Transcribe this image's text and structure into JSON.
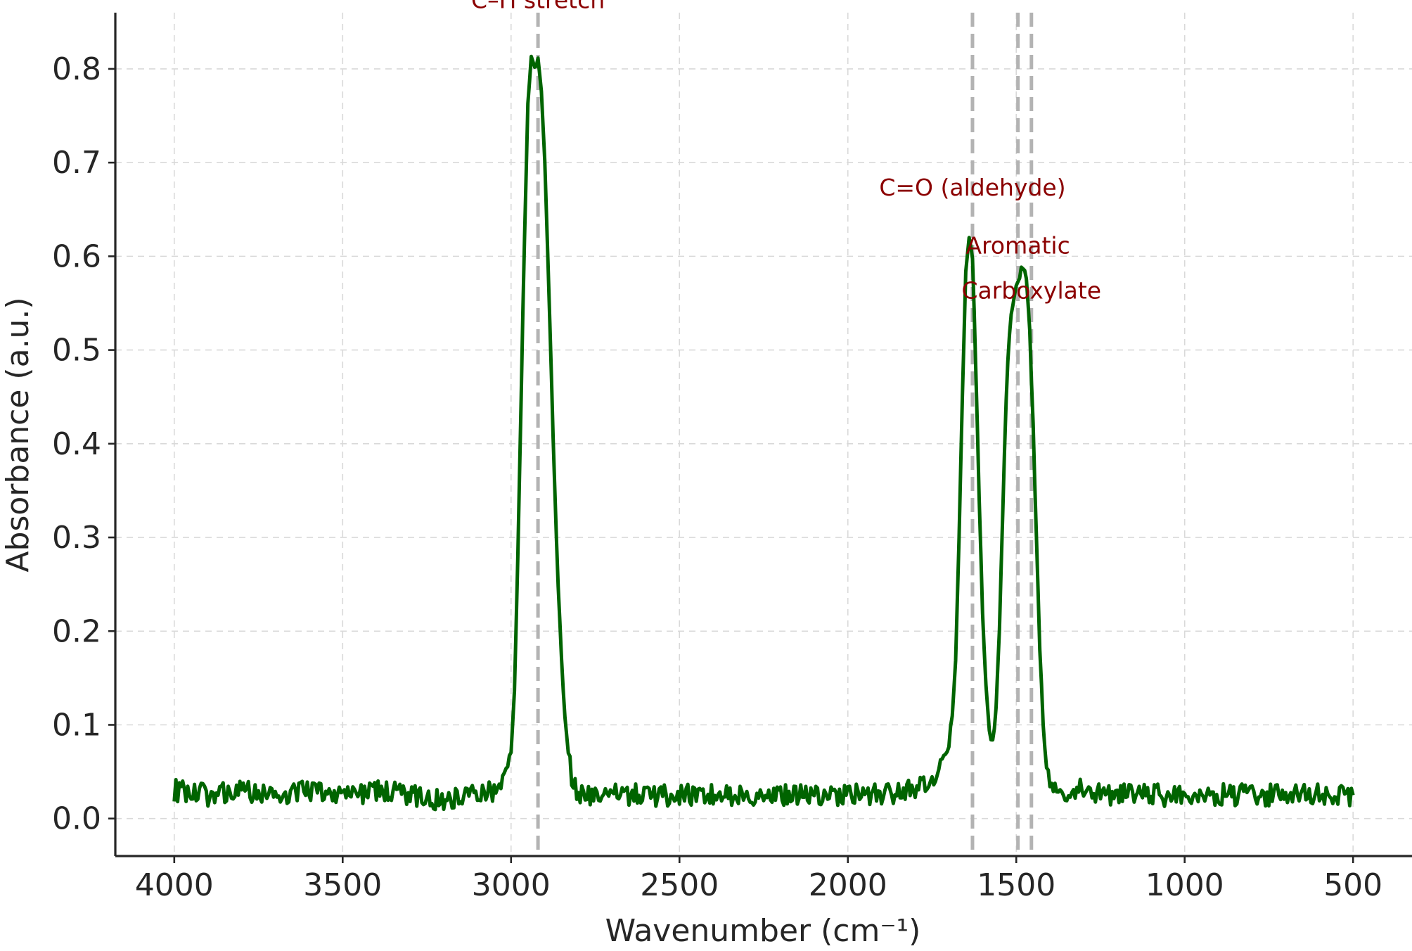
{
  "chart_data": {
    "type": "line",
    "title": "",
    "xlabel": "Wavenumber (cm⁻¹)",
    "ylabel": "Absorbance (a.u.)",
    "xlim": [
      4175,
      325
    ],
    "ylim": [
      -0.04,
      0.86
    ],
    "x_inverted": true,
    "grid": true,
    "x_ticks": [
      {
        "value": 4000,
        "label": "4000"
      },
      {
        "value": 3500,
        "label": "3500"
      },
      {
        "value": 3000,
        "label": "3000"
      },
      {
        "value": 2500,
        "label": "2500"
      },
      {
        "value": 2000,
        "label": "2000"
      },
      {
        "value": 1500,
        "label": "1500"
      },
      {
        "value": 1000,
        "label": "1000"
      },
      {
        "value": 500,
        "label": "500"
      }
    ],
    "y_ticks": [
      {
        "value": 0.0,
        "label": "0.0"
      },
      {
        "value": 0.1,
        "label": "0.1"
      },
      {
        "value": 0.2,
        "label": "0.2"
      },
      {
        "value": 0.3,
        "label": "0.3"
      },
      {
        "value": 0.4,
        "label": "0.4"
      },
      {
        "value": 0.5,
        "label": "0.5"
      },
      {
        "value": 0.6,
        "label": "0.6"
      },
      {
        "value": 0.7,
        "label": "0.7"
      },
      {
        "value": 0.8,
        "label": "0.8"
      }
    ],
    "series": [
      {
        "color": "#006400",
        "x": [
          4000,
          3900,
          3800,
          3700,
          3600,
          3500,
          3400,
          3300,
          3200,
          3150,
          3100,
          3050,
          3020,
          3000,
          2990,
          2980,
          2970,
          2960,
          2950,
          2940,
          2930,
          2920,
          2910,
          2900,
          2890,
          2880,
          2870,
          2860,
          2850,
          2840,
          2830,
          2820,
          2810,
          2800,
          2780,
          2750,
          2700,
          2600,
          2500,
          2400,
          2300,
          2200,
          2100,
          2000,
          1900,
          1800,
          1750,
          1720,
          1700,
          1690,
          1680,
          1670,
          1660,
          1650,
          1640,
          1630,
          1620,
          1610,
          1600,
          1590,
          1580,
          1570,
          1560,
          1550,
          1540,
          1530,
          1520,
          1510,
          1500,
          1490,
          1480,
          1470,
          1460,
          1450,
          1440,
          1430,
          1420,
          1410,
          1400,
          1390,
          1370,
          1300,
          1200,
          1100,
          1000,
          900,
          800,
          700,
          600,
          500
        ],
        "y": [
          0.03,
          0.025,
          0.03,
          0.025,
          0.03,
          0.025,
          0.03,
          0.025,
          0.02,
          0.025,
          0.03,
          0.03,
          0.045,
          0.07,
          0.14,
          0.28,
          0.45,
          0.62,
          0.76,
          0.81,
          0.8,
          0.81,
          0.78,
          0.7,
          0.59,
          0.47,
          0.35,
          0.25,
          0.17,
          0.11,
          0.07,
          0.045,
          0.035,
          0.03,
          0.025,
          0.025,
          0.025,
          0.025,
          0.025,
          0.025,
          0.025,
          0.025,
          0.025,
          0.025,
          0.025,
          0.03,
          0.045,
          0.06,
          0.08,
          0.11,
          0.17,
          0.3,
          0.45,
          0.58,
          0.62,
          0.6,
          0.48,
          0.34,
          0.22,
          0.14,
          0.09,
          0.08,
          0.12,
          0.2,
          0.33,
          0.45,
          0.52,
          0.55,
          0.57,
          0.58,
          0.59,
          0.58,
          0.52,
          0.42,
          0.3,
          0.18,
          0.1,
          0.05,
          0.035,
          0.03,
          0.03,
          0.03,
          0.025,
          0.025,
          0.025,
          0.025,
          0.025,
          0.025,
          0.025,
          0.025
        ]
      }
    ],
    "reference_lines": [
      {
        "x": 2920,
        "label": "C–H stretch"
      },
      {
        "x": 1630,
        "label": "C=O (aldehyde)"
      },
      {
        "x": 1495,
        "label": "Aromatic"
      },
      {
        "x": 1455,
        "label": "Carboxylate"
      }
    ],
    "annotations": [
      {
        "x": 2920,
        "y": 0.865,
        "text": "C–H stretch"
      },
      {
        "x": 1630,
        "y": 0.665,
        "text": "C=O (aldehyde)"
      },
      {
        "x": 1495,
        "y": 0.603,
        "text": "Aromatic"
      },
      {
        "x": 1455,
        "y": 0.555,
        "text": "Carboxylate"
      }
    ]
  }
}
